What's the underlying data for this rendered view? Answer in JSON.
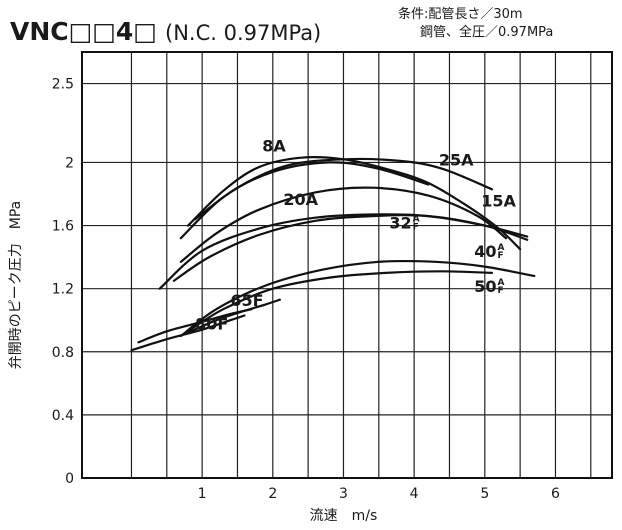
{
  "title": {
    "main": "VNC□□4□",
    "sub": "(N.C. 0.97MPa)"
  },
  "conditions": {
    "line1": "条件:配管長さ／30m",
    "line2": "鋼管、全圧／0.97MPa"
  },
  "chart_data": {
    "type": "line",
    "xlabel": "流速　m/s",
    "ylabel": "弁開時のピーク圧力　MPa",
    "xlim": [
      -0.7,
      6.8
    ],
    "ylim": [
      0,
      2.7
    ],
    "xticks": [
      "1",
      "2",
      "3",
      "4",
      "5",
      "6"
    ],
    "yticks": [
      "0",
      "0.4",
      "0.8",
      "1.2",
      "1.6",
      "2",
      "2.5"
    ],
    "grid": true,
    "series": [
      {
        "name": "8A",
        "label_sup": "",
        "x": [
          0.8,
          1.3,
          1.8,
          2.4,
          3.0,
          3.6,
          4.2,
          4.8,
          5.2,
          5.5
        ],
        "y": [
          1.6,
          1.82,
          1.97,
          2.03,
          2.02,
          1.96,
          1.87,
          1.71,
          1.58,
          1.45
        ]
      },
      {
        "name": "25A",
        "label_sup": "",
        "x": [
          0.9,
          1.5,
          2.2,
          3.0,
          3.8,
          4.4,
          5.1
        ],
        "y": [
          1.64,
          1.84,
          1.98,
          2.02,
          2.01,
          1.96,
          1.83
        ]
      },
      {
        "name": "15A",
        "label_sup": "",
        "x": [
          0.7,
          1.3,
          2.0,
          2.8,
          3.5,
          4.2
        ],
        "y": [
          1.52,
          1.78,
          1.94,
          2.0,
          1.96,
          1.86
        ]
      },
      {
        "name": "20A",
        "label_sup": "",
        "x": [
          0.7,
          1.2,
          1.8,
          2.6,
          3.4,
          4.2,
          4.9,
          5.3
        ],
        "y": [
          1.37,
          1.55,
          1.7,
          1.81,
          1.84,
          1.79,
          1.66,
          1.52
        ]
      },
      {
        "name": "32A",
        "label_sup": "A/F",
        "x": [
          0.4,
          1.0,
          1.8,
          2.6,
          3.4,
          4.2,
          5.0,
          5.6
        ],
        "y": [
          1.2,
          1.44,
          1.58,
          1.65,
          1.67,
          1.66,
          1.6,
          1.53
        ]
      },
      {
        "name": "40A",
        "label_sup": "A/F",
        "x": [
          0.6,
          1.1,
          1.8,
          2.6,
          3.4,
          4.2,
          5.0,
          5.6
        ],
        "y": [
          1.25,
          1.4,
          1.54,
          1.63,
          1.66,
          1.66,
          1.6,
          1.51
        ]
      },
      {
        "name": "50A",
        "label_sup": "A/F",
        "x": [
          0.7,
          1.2,
          1.9,
          2.7,
          3.5,
          4.3,
          5.0,
          5.7
        ],
        "y": [
          0.9,
          1.07,
          1.22,
          1.32,
          1.37,
          1.37,
          1.34,
          1.28
        ]
      },
      {
        "name": "50A",
        "label_sup": "",
        "x": [
          0.8,
          1.3,
          2.0,
          2.8,
          3.6,
          4.4,
          5.1
        ],
        "y": [
          0.93,
          1.07,
          1.2,
          1.27,
          1.3,
          1.31,
          1.3
        ]
      },
      {
        "name": "65F",
        "label_sup": "",
        "x": [
          0.8,
          1.2,
          1.6,
          1.9,
          2.1
        ],
        "y": [
          0.92,
          1.0,
          1.06,
          1.1,
          1.13
        ]
      },
      {
        "name": "80F",
        "label_sup": "",
        "x": [
          0.0,
          0.5,
          1.0,
          1.4,
          1.6
        ],
        "y": [
          0.81,
          0.88,
          0.94,
          1.0,
          1.03
        ]
      },
      {
        "name": "",
        "label_sup": "",
        "x": [
          0.1,
          0.5,
          1.0,
          1.4,
          1.7
        ],
        "y": [
          0.86,
          0.93,
          0.99,
          1.04,
          1.07
        ]
      }
    ],
    "labels": [
      {
        "text": "8A",
        "sup": "",
        "x": 1.85,
        "y": 2.07
      },
      {
        "text": "25A",
        "sup": "",
        "x": 4.35,
        "y": 1.98
      },
      {
        "text": "20A",
        "sup": "",
        "x": 2.15,
        "y": 1.73
      },
      {
        "text": "15A",
        "sup": "",
        "x": 4.95,
        "y": 1.72
      },
      {
        "text": "32",
        "sup": "A/F",
        "x": 3.65,
        "y": 1.58
      },
      {
        "text": "40",
        "sup": "A/F",
        "x": 4.85,
        "y": 1.4
      },
      {
        "text": "50",
        "sup": "A/F",
        "x": 4.85,
        "y": 1.18
      },
      {
        "text": "65F",
        "sup": "",
        "x": 1.4,
        "y": 1.09
      },
      {
        "text": "80F",
        "sup": "",
        "x": 0.9,
        "y": 0.94
      }
    ]
  }
}
